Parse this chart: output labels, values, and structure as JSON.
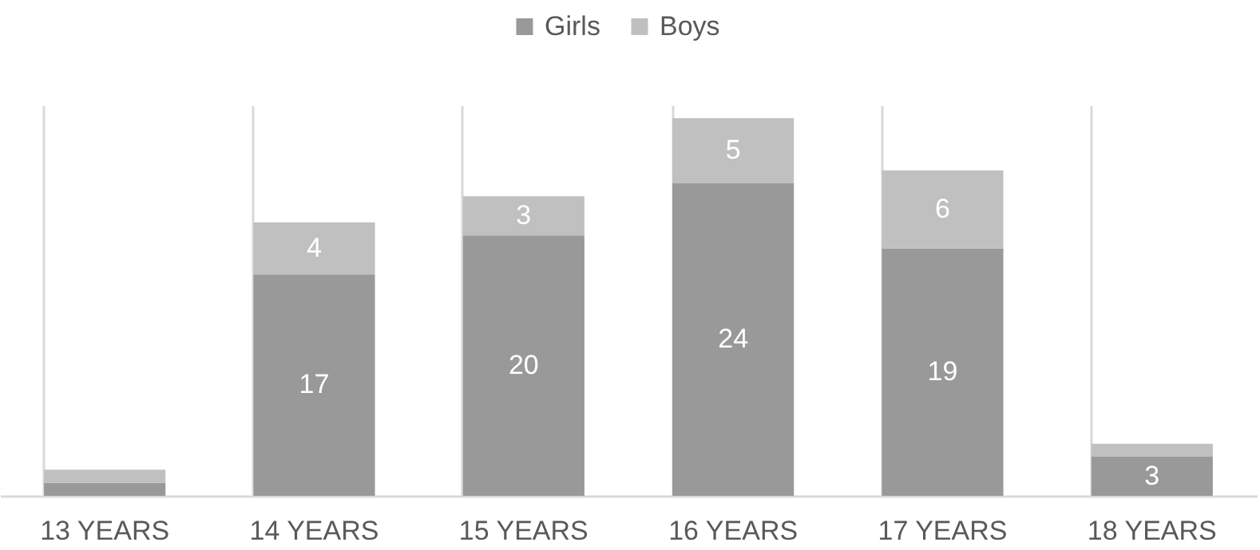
{
  "chart_data": {
    "type": "bar",
    "stacked": true,
    "categories": [
      "13 YEARS",
      "14 YEARS",
      "15 YEARS",
      "16 YEARS",
      "17 YEARS",
      "18 YEARS"
    ],
    "series": [
      {
        "name": "Girls",
        "color": "#999999",
        "values": [
          1,
          17,
          20,
          24,
          19,
          3
        ],
        "value_labels": [
          null,
          "17",
          "20",
          "24",
          "19",
          "3"
        ]
      },
      {
        "name": "Boys",
        "color": "#c0c0c0",
        "values": [
          1,
          4,
          3,
          5,
          6,
          1
        ],
        "value_labels": [
          null,
          "4",
          "3",
          "5",
          "6",
          null
        ]
      }
    ],
    "grid": "x",
    "legend": "top"
  }
}
